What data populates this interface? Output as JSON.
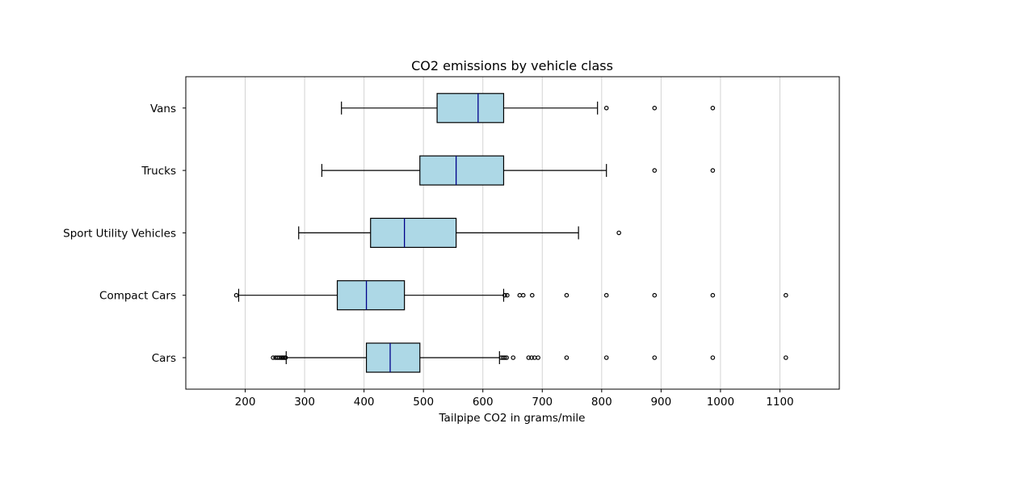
{
  "chart_data": {
    "type": "boxplot",
    "orientation": "horizontal",
    "title": "CO2 emissions by vehicle class",
    "xlabel": "Tailpipe CO2 in grams/mile",
    "ylabel": "",
    "xlim": [
      100,
      1200
    ],
    "x_ticks": [
      200,
      300,
      400,
      500,
      600,
      700,
      800,
      900,
      1000,
      1100
    ],
    "grid": "vertical",
    "colors": {
      "box_fill": "#add8e6",
      "box_edge": "#000000",
      "median": "#00008b",
      "grid": "#d3d3d3"
    },
    "categories": [
      "Cars",
      "Compact Cars",
      "Sport Utility Vehicles",
      "Trucks",
      "Vans"
    ],
    "boxes": [
      {
        "category": "Cars",
        "whisker_low": 269,
        "q1": 404,
        "median": 444,
        "q3": 494,
        "whisker_high": 628,
        "outliers": [
          247,
          251,
          254,
          257,
          260,
          262,
          264,
          266,
          268,
          631,
          634,
          637,
          640,
          651,
          677,
          682,
          687,
          693,
          741,
          808,
          889,
          987,
          1110
        ]
      },
      {
        "category": "Compact Cars",
        "whisker_low": 189,
        "q1": 355,
        "median": 404,
        "q3": 468,
        "whisker_high": 635,
        "outliers": [
          185,
          637,
          641,
          662,
          668,
          683,
          741,
          808,
          889,
          987,
          1110
        ]
      },
      {
        "category": "Sport Utility Vehicles",
        "whisker_low": 290,
        "q1": 411,
        "median": 468,
        "q3": 555,
        "whisker_high": 761,
        "outliers": [
          829
        ]
      },
      {
        "category": "Trucks",
        "whisker_low": 329,
        "q1": 494,
        "median": 555,
        "q3": 635,
        "whisker_high": 808,
        "outliers": [
          889,
          987
        ]
      },
      {
        "category": "Vans",
        "whisker_low": 362,
        "q1": 523,
        "median": 592,
        "q3": 635,
        "whisker_high": 793,
        "outliers": [
          808,
          889,
          987
        ]
      }
    ]
  }
}
